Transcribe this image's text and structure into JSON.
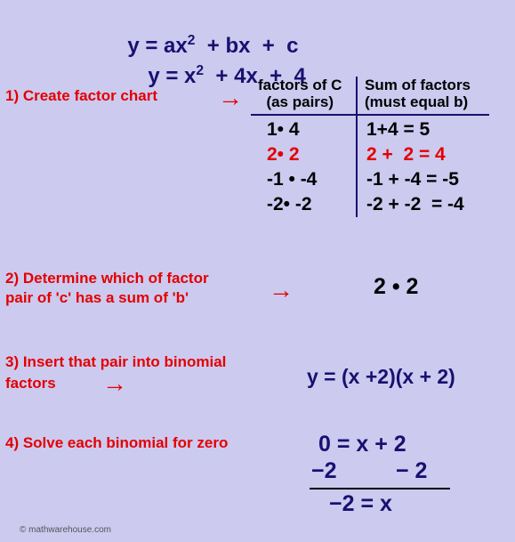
{
  "colors": {
    "background": "#cccaef",
    "navy": "#191070",
    "red": "#e40000",
    "black": "#000000",
    "copyright": "#555555"
  },
  "header": {
    "eq1_pre": "y = ax",
    "eq1_sup": "2",
    "eq1_post": "  + bx  +  c",
    "eq2_pre": "y = x",
    "eq2_sup": "2",
    "eq2_post": "  + 4x  +  4"
  },
  "steps": {
    "s1": "1)  Create factor chart",
    "s2a": "2)  Determine which of  factor",
    "s2b": "pair  of 'c' has a sum of 'b'",
    "s3a": "3)  Insert that pair into binomial",
    "s3b": "factors",
    "s4": "4)  Solve each binomial for zero"
  },
  "arrow": "→",
  "table": {
    "head_left_l1": "factors of C",
    "head_left_l2": "(as pairs)",
    "head_right_l1": "Sum of factors",
    "head_right_l2": "(must equal b)",
    "rows": [
      {
        "left": "1• 4",
        "right": "1+4 = 5",
        "highlight": false
      },
      {
        "left": "2• 2",
        "right": "2 +  2 = 4",
        "highlight": true
      },
      {
        "left": "-1 • -4",
        "right": "-1 + -4 = -5",
        "highlight": false
      },
      {
        "left": "-2• -2",
        "right": "-2 + -2  = -4",
        "highlight": false
      }
    ]
  },
  "results": {
    "pair": "2 • 2",
    "binomial": "y = (x +2)(x + 2)",
    "solve_l1": "0  = x + 2",
    "solve_l2a": "−2",
    "solve_l2b": "− 2",
    "solve_l3": "−2 = x"
  },
  "footer": "© mathwarehouse.com"
}
